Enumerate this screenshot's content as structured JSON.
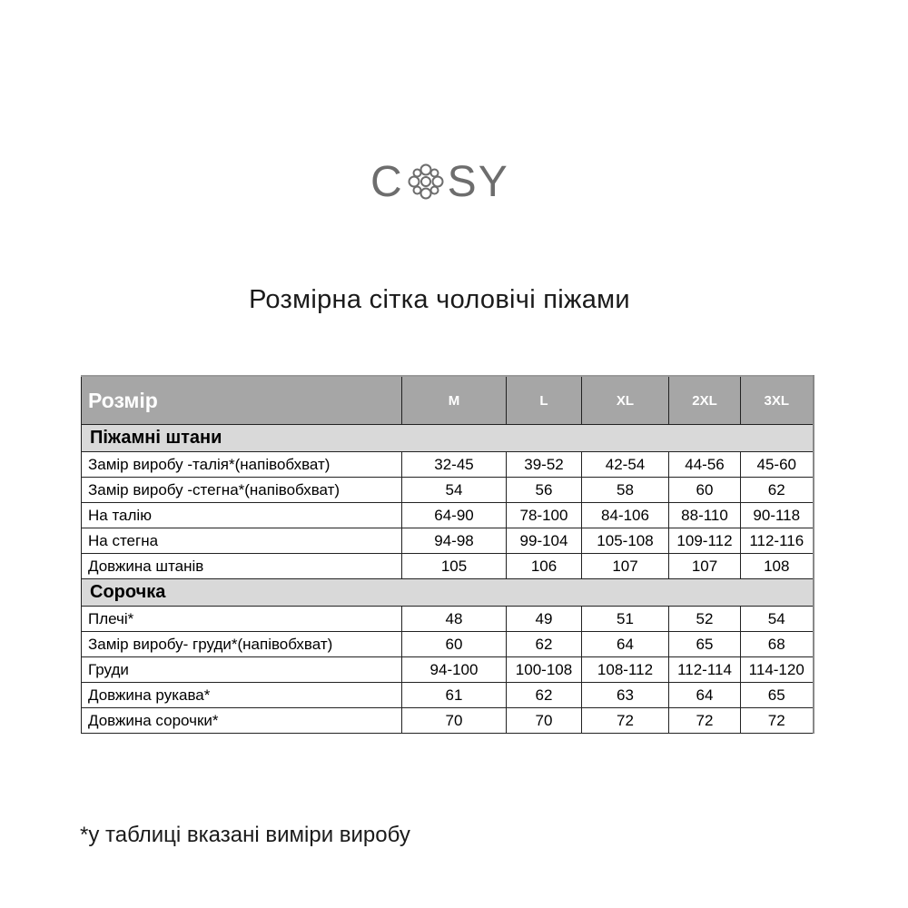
{
  "logo": {
    "text_left": "C",
    "text_right": "SY",
    "symbol": "knot-flower-icon"
  },
  "title": "Розмірна сітка чоловічі піжами",
  "table": {
    "header": [
      "Розмір",
      "M",
      "L",
      "XL",
      "2XL",
      "3XL"
    ],
    "sections": [
      {
        "title": "Піжамні штани",
        "rows": [
          [
            "Замір виробу -талія*(напівобхват)",
            "32-45",
            "39-52",
            "42-54",
            "44-56",
            "45-60"
          ],
          [
            "Замір виробу -стегна*(напівобхват)",
            "54",
            "56",
            "58",
            "60",
            "62"
          ],
          [
            "На талію",
            "64-90",
            "78-100",
            "84-106",
            "88-110",
            "90-118"
          ],
          [
            "На стегна",
            "94-98",
            "99-104",
            "105-108",
            "109-112",
            "112-116"
          ],
          [
            "Довжина штанів",
            "105",
            "106",
            "107",
            "107",
            "108"
          ]
        ]
      },
      {
        "title": "Сорочка",
        "rows": [
          [
            "Плечі*",
            "48",
            "49",
            "51",
            "52",
            "54"
          ],
          [
            "Замір виробу- груди*(напівобхват)",
            "60",
            "62",
            "64",
            "65",
            "68"
          ],
          [
            "Груди",
            "94-100",
            "100-108",
            "108-112",
            "112-114",
            "114-120"
          ],
          [
            "Довжина рукава*",
            "61",
            "62",
            "63",
            "64",
            "65"
          ],
          [
            "Довжина сорочки*",
            "70",
            "70",
            "72",
            "72",
            "72"
          ]
        ]
      }
    ]
  },
  "footnote": "*у таблиці вказані виміри виробу",
  "colors": {
    "header_bg": "#a6a6a6",
    "section_bg": "#d9d9d9",
    "logo": "#6d6d6d"
  }
}
